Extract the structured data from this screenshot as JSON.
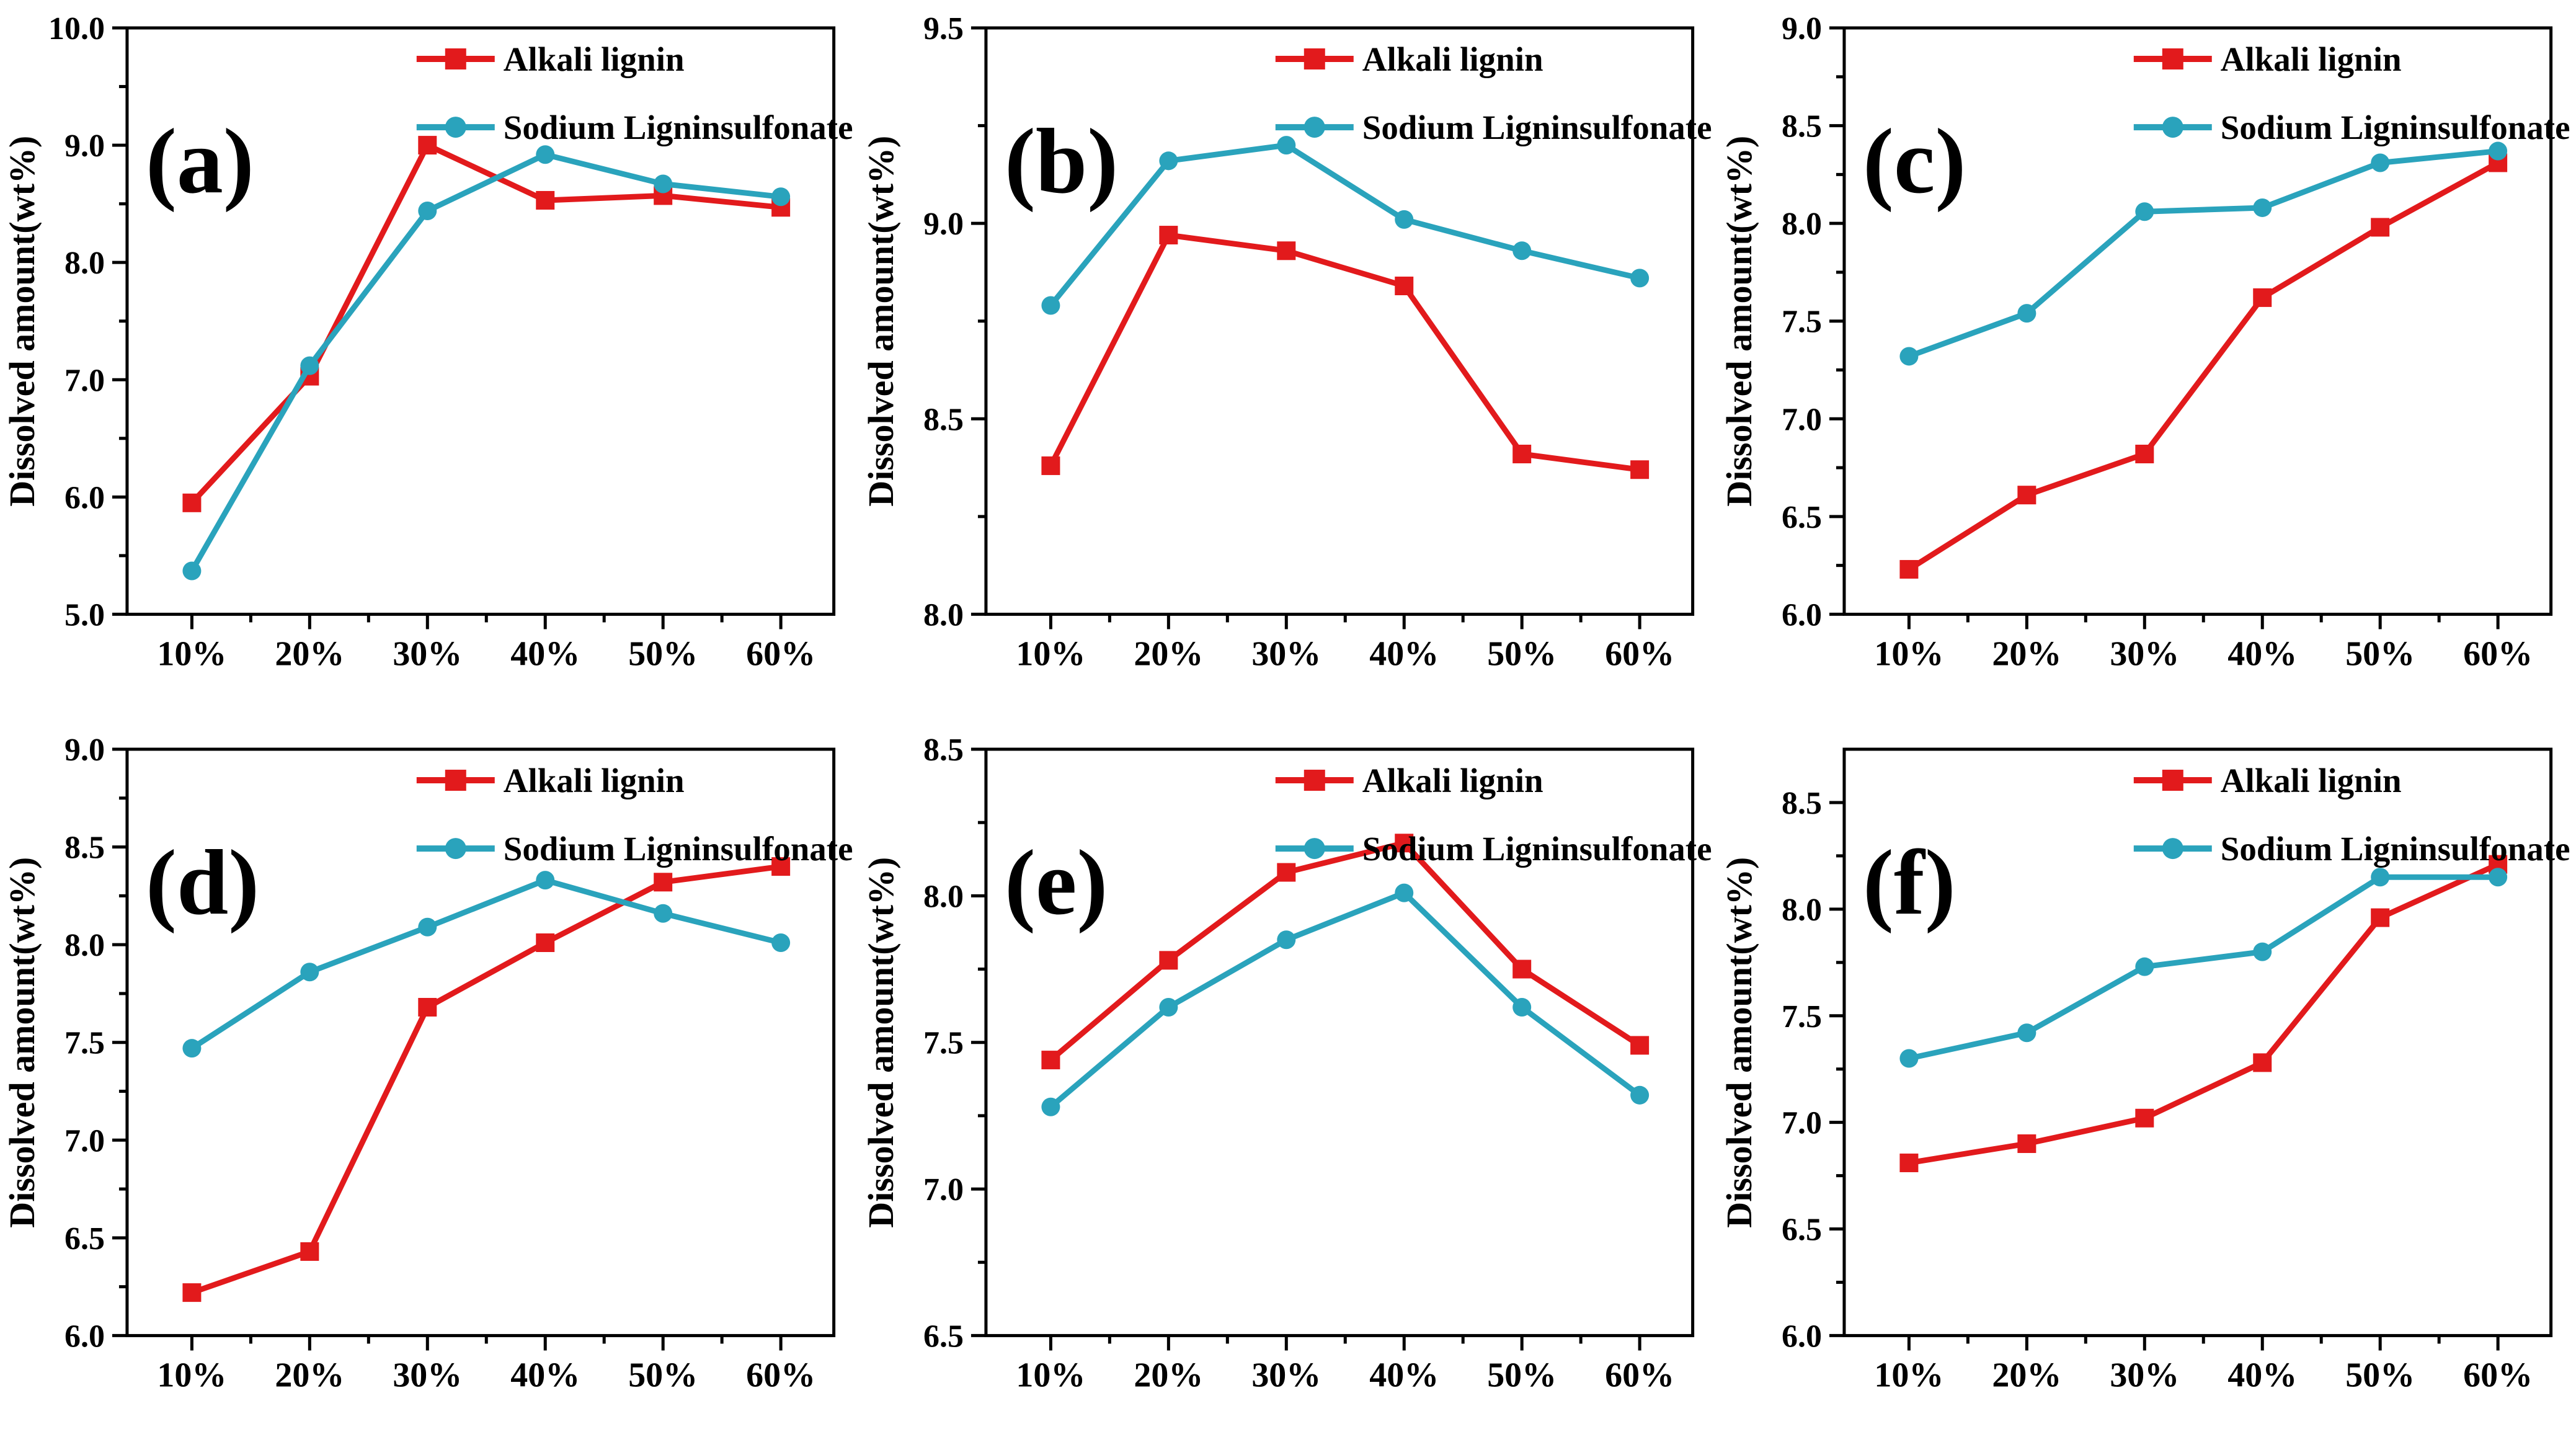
{
  "figure": {
    "y_axis_label": "Dissolved amount(wt%)",
    "x_tick_labels": [
      "10%",
      "20%",
      "30%",
      "40%",
      "50%",
      "60%"
    ],
    "legend": {
      "position": "top-right",
      "entries": [
        {
          "label": "Alkali lignin",
          "color": "#e21a1c",
          "marker": "square"
        },
        {
          "label": "Sodium Ligninsulfonate",
          "color": "#2aa3bc",
          "marker": "circle"
        }
      ]
    },
    "colors": {
      "alkali_lignin": "#e21a1c",
      "sodium_ligninsulfonate": "#2aa3bc",
      "axis": "#000000",
      "background": "#ffffff"
    }
  },
  "chart_data": [
    {
      "type": "line",
      "panel_label": "(a)",
      "xlabel": "",
      "ylabel": "Dissolved amount(wt%)",
      "categories": [
        "10%",
        "20%",
        "30%",
        "40%",
        "50%",
        "60%"
      ],
      "ylim": [
        5.0,
        10.0
      ],
      "ytick_labels": [
        "5.0",
        "6.0",
        "7.0",
        "8.0",
        "9.0",
        "10.0"
      ],
      "minor_tick_step": 0.5,
      "grid": false,
      "series": [
        {
          "name": "Alkali lignin",
          "color": "#e21a1c",
          "marker": "square",
          "values": [
            5.95,
            7.03,
            9.0,
            8.53,
            8.57,
            8.47
          ]
        },
        {
          "name": "Sodium Ligninsulfonate",
          "color": "#2aa3bc",
          "marker": "circle",
          "values": [
            5.37,
            7.12,
            8.44,
            8.92,
            8.67,
            8.56
          ]
        }
      ]
    },
    {
      "type": "line",
      "panel_label": "(b)",
      "xlabel": "",
      "ylabel": "Dissolved amount(wt%)",
      "categories": [
        "10%",
        "20%",
        "30%",
        "40%",
        "50%",
        "60%"
      ],
      "ylim": [
        8.0,
        9.5
      ],
      "ytick_labels": [
        "8.0",
        "8.5",
        "9.0",
        "9.5"
      ],
      "minor_tick_step": 0.25,
      "grid": false,
      "series": [
        {
          "name": "Alkali lignin",
          "color": "#e21a1c",
          "marker": "square",
          "values": [
            8.38,
            8.97,
            8.93,
            8.84,
            8.41,
            8.37
          ]
        },
        {
          "name": "Sodium Ligninsulfonate",
          "color": "#2aa3bc",
          "marker": "circle",
          "values": [
            8.79,
            9.16,
            9.2,
            9.01,
            8.93,
            8.86
          ]
        }
      ]
    },
    {
      "type": "line",
      "panel_label": "(c)",
      "xlabel": "",
      "ylabel": "Dissolved amount(wt%)",
      "categories": [
        "10%",
        "20%",
        "30%",
        "40%",
        "50%",
        "60%"
      ],
      "ylim": [
        6.0,
        9.0
      ],
      "ytick_labels": [
        "6.0",
        "6.5",
        "7.0",
        "7.5",
        "8.0",
        "8.5",
        "9.0"
      ],
      "minor_tick_step": 0.25,
      "grid": false,
      "series": [
        {
          "name": "Alkali lignin",
          "color": "#e21a1c",
          "marker": "square",
          "values": [
            6.23,
            6.61,
            6.82,
            7.62,
            7.98,
            8.31
          ]
        },
        {
          "name": "Sodium Ligninsulfonate",
          "color": "#2aa3bc",
          "marker": "circle",
          "values": [
            7.32,
            7.54,
            8.06,
            8.08,
            8.31,
            8.37
          ]
        }
      ]
    },
    {
      "type": "line",
      "panel_label": "(d)",
      "xlabel": "",
      "ylabel": "Dissolved amount(wt%)",
      "categories": [
        "10%",
        "20%",
        "30%",
        "40%",
        "50%",
        "60%"
      ],
      "ylim": [
        6.0,
        9.0
      ],
      "ytick_labels": [
        "6.0",
        "6.5",
        "7.0",
        "7.5",
        "8.0",
        "8.5",
        "9.0"
      ],
      "minor_tick_step": 0.25,
      "grid": false,
      "series": [
        {
          "name": "Alkali lignin",
          "color": "#e21a1c",
          "marker": "square",
          "values": [
            6.22,
            6.43,
            7.68,
            8.01,
            8.32,
            8.4
          ]
        },
        {
          "name": "Sodium Ligninsulfonate",
          "color": "#2aa3bc",
          "marker": "circle",
          "values": [
            7.47,
            7.86,
            8.09,
            8.33,
            8.16,
            8.01
          ]
        }
      ]
    },
    {
      "type": "line",
      "panel_label": "(e)",
      "xlabel": "",
      "ylabel": "Dissolved amount(wt%)",
      "categories": [
        "10%",
        "20%",
        "30%",
        "40%",
        "50%",
        "60%"
      ],
      "ylim": [
        6.5,
        8.5
      ],
      "ytick_labels": [
        "6.5",
        "7.0",
        "7.5",
        "8.0",
        "8.5"
      ],
      "minor_tick_step": 0.25,
      "grid": false,
      "series": [
        {
          "name": "Alkali lignin",
          "color": "#e21a1c",
          "marker": "square",
          "values": [
            7.44,
            7.78,
            8.08,
            8.18,
            7.75,
            7.49
          ]
        },
        {
          "name": "Sodium Ligninsulfonate",
          "color": "#2aa3bc",
          "marker": "circle",
          "values": [
            7.28,
            7.62,
            7.85,
            8.01,
            7.62,
            7.32
          ]
        }
      ]
    },
    {
      "type": "line",
      "panel_label": "(f)",
      "xlabel": "",
      "ylabel": "Dissolved amount(wt%)",
      "categories": [
        "10%",
        "20%",
        "30%",
        "40%",
        "50%",
        "60%"
      ],
      "ylim": [
        6.0,
        8.75
      ],
      "ytick_labels": [
        "6.0",
        "6.5",
        "7.0",
        "7.5",
        "8.0",
        "8.5"
      ],
      "minor_tick_step": 0.25,
      "grid": false,
      "series": [
        {
          "name": "Alkali lignin",
          "color": "#e21a1c",
          "marker": "square",
          "values": [
            6.81,
            6.9,
            7.02,
            7.28,
            7.96,
            8.21
          ]
        },
        {
          "name": "Sodium Ligninsulfonate",
          "color": "#2aa3bc",
          "marker": "circle",
          "values": [
            7.3,
            7.42,
            7.73,
            7.8,
            8.15,
            8.15
          ]
        }
      ]
    }
  ]
}
